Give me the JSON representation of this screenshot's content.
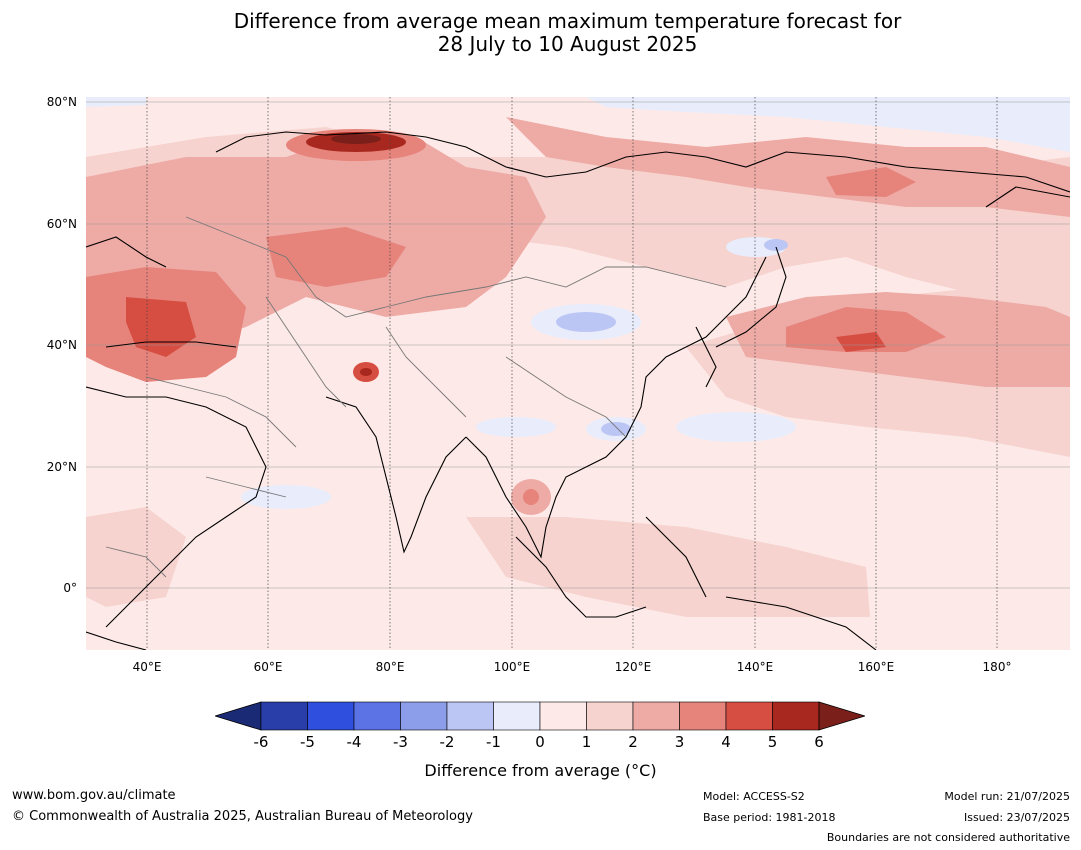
{
  "title_line1": "Difference from average mean maximum temperature forecast for",
  "title_line2": "28 July to 10 August 2025",
  "lat_labels": [
    "80°N",
    "60°N",
    "40°N",
    "20°N",
    "0°"
  ],
  "lon_labels": [
    "40°E",
    "60°E",
    "80°E",
    "100°E",
    "120°E",
    "140°E",
    "160°E",
    "180°"
  ],
  "colorbar": {
    "ticks": [
      "-6",
      "-5",
      "-4",
      "-3",
      "-2",
      "-1",
      "0",
      "1",
      "2",
      "3",
      "4",
      "5",
      "6"
    ],
    "low_extend_color": "#1b2a74",
    "high_extend_color": "#7a1f1a",
    "colors": [
      "#2a3eaa",
      "#2f4fdf",
      "#5c73e6",
      "#8c9eea",
      "#bcc6f4",
      "#e8ecfb",
      "#fdeae8",
      "#f6d3cf",
      "#eeaaa5",
      "#e6837b",
      "#d64d42",
      "#a8281f"
    ],
    "label": "Difference from average (°C)"
  },
  "footer": {
    "website": "www.bom.gov.au/climate",
    "copyright": "© Commonwealth of Australia 2025, Australian Bureau of Meteorology",
    "model": "Model: ACCESS-S2",
    "base_period": "Base period: 1981-2018",
    "model_run": "Model run: 21/07/2025",
    "issued": "Issued: 23/07/2025",
    "disclaimer": "Boundaries are not considered authoritative"
  }
}
